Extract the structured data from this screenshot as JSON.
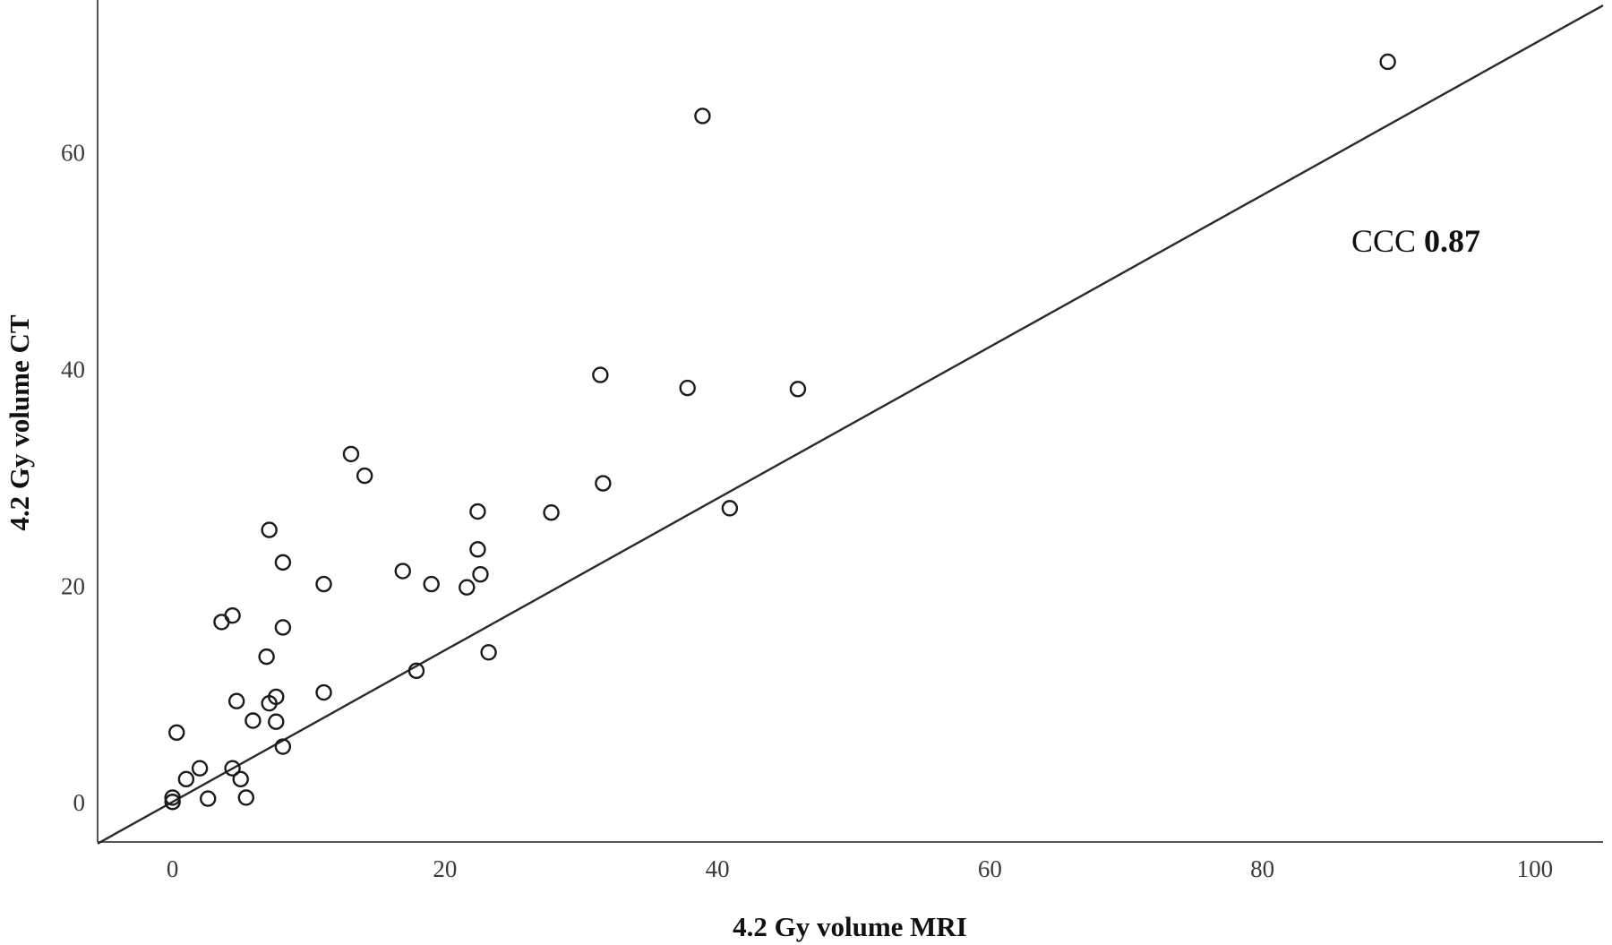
{
  "chart_data": {
    "type": "scatter",
    "xlabel": "4.2 Gy volume MRI",
    "ylabel": "4.2 Gy volume CT",
    "xlim": [
      -5.5,
      105
    ],
    "ylim": [
      -3.7,
      74
    ],
    "x_ticks": [
      0,
      20,
      40,
      60,
      80,
      100
    ],
    "y_ticks": [
      0,
      20,
      40,
      60
    ],
    "grid": false,
    "legend": "none",
    "marker": "open-circle",
    "annotation": {
      "label": "CCC ",
      "value": "0.87"
    },
    "reference_line": {
      "slope": 0.7,
      "intercept": 0
    },
    "points": [
      {
        "x": 89.2,
        "y": 68.3
      },
      {
        "x": 38.9,
        "y": 63.3
      },
      {
        "x": 31.4,
        "y": 39.4
      },
      {
        "x": 37.8,
        "y": 38.2
      },
      {
        "x": 45.9,
        "y": 38.1
      },
      {
        "x": 13.1,
        "y": 32.1
      },
      {
        "x": 14.1,
        "y": 30.1
      },
      {
        "x": 31.6,
        "y": 29.4
      },
      {
        "x": 22.4,
        "y": 26.8
      },
      {
        "x": 27.8,
        "y": 26.7
      },
      {
        "x": 40.9,
        "y": 27.1
      },
      {
        "x": 7.1,
        "y": 25.1
      },
      {
        "x": 22.4,
        "y": 23.3
      },
      {
        "x": 8.1,
        "y": 22.1
      },
      {
        "x": 16.9,
        "y": 21.3
      },
      {
        "x": 22.6,
        "y": 21.0
      },
      {
        "x": 11.1,
        "y": 20.1
      },
      {
        "x": 19.0,
        "y": 20.1
      },
      {
        "x": 21.6,
        "y": 19.8
      },
      {
        "x": 3.6,
        "y": 16.6
      },
      {
        "x": 4.4,
        "y": 17.2
      },
      {
        "x": 8.1,
        "y": 16.1
      },
      {
        "x": 23.2,
        "y": 13.8
      },
      {
        "x": 6.9,
        "y": 13.4
      },
      {
        "x": 17.9,
        "y": 12.1
      },
      {
        "x": 11.1,
        "y": 10.1
      },
      {
        "x": 7.6,
        "y": 9.7
      },
      {
        "x": 4.7,
        "y": 9.3
      },
      {
        "x": 7.1,
        "y": 9.1
      },
      {
        "x": 5.9,
        "y": 7.5
      },
      {
        "x": 7.6,
        "y": 7.4
      },
      {
        "x": 0.3,
        "y": 6.4
      },
      {
        "x": 8.1,
        "y": 5.1
      },
      {
        "x": 2.0,
        "y": 3.1
      },
      {
        "x": 4.4,
        "y": 3.1
      },
      {
        "x": 1.0,
        "y": 2.1
      },
      {
        "x": 5.0,
        "y": 2.1
      },
      {
        "x": 0.0,
        "y": 0.4
      },
      {
        "x": 2.6,
        "y": 0.3
      },
      {
        "x": 5.4,
        "y": 0.4
      },
      {
        "x": 0.0,
        "y": 0.0
      }
    ]
  }
}
